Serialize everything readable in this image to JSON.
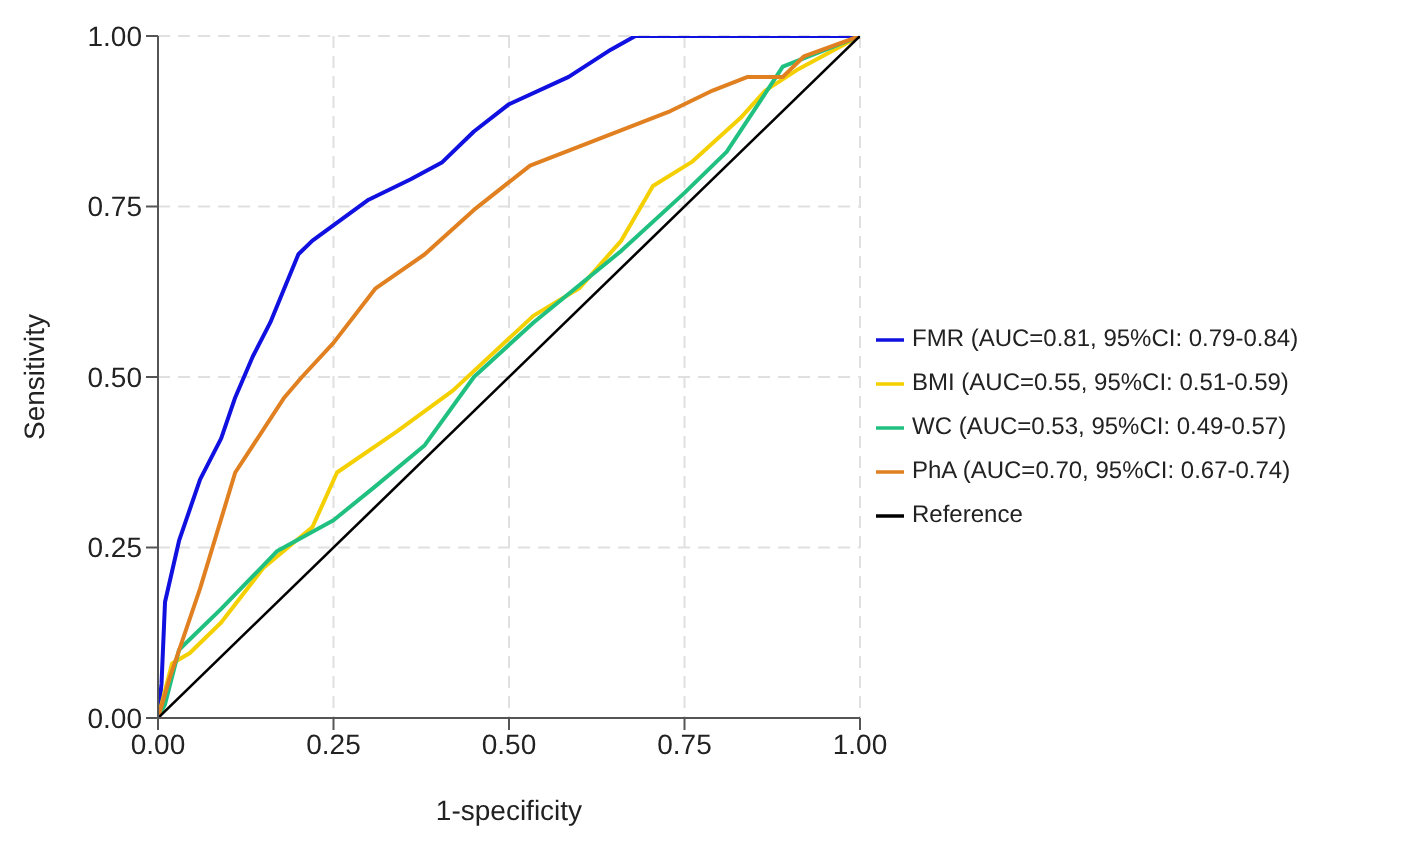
{
  "chart_data": {
    "type": "line",
    "xlabel": "1-specificity",
    "ylabel": "Sensitivity",
    "xlim": [
      0,
      1
    ],
    "ylim": [
      0,
      1
    ],
    "xticks": [
      {
        "value": 0,
        "label": "0.00"
      },
      {
        "value": 0.25,
        "label": "0.25"
      },
      {
        "value": 0.5,
        "label": "0.50"
      },
      {
        "value": 0.75,
        "label": "0.75"
      },
      {
        "value": 1,
        "label": "1.00"
      }
    ],
    "yticks": [
      {
        "value": 0,
        "label": "0.00"
      },
      {
        "value": 0.25,
        "label": "0.25"
      },
      {
        "value": 0.5,
        "label": "0.50"
      },
      {
        "value": 0.75,
        "label": "0.75"
      },
      {
        "value": 1,
        "label": "1.00"
      }
    ],
    "grid": true,
    "legend": "right",
    "marker": "none",
    "series": [
      {
        "name": "FMR (AUC=0.81, 95%CI: 0.79-0.84)",
        "color": "#1010e0",
        "x": [
          0,
          0.005,
          0.01,
          0.03,
          0.06,
          0.09,
          0.11,
          0.135,
          0.16,
          0.18,
          0.2,
          0.22,
          0.26,
          0.3,
          0.36,
          0.405,
          0.45,
          0.5,
          0.585,
          0.645,
          0.68,
          1
        ],
        "values": [
          0,
          0.05,
          0.17,
          0.26,
          0.35,
          0.41,
          0.47,
          0.53,
          0.58,
          0.63,
          0.68,
          0.7,
          0.73,
          0.76,
          0.79,
          0.815,
          0.86,
          0.9,
          0.94,
          0.98,
          1,
          1
        ]
      },
      {
        "name": "BMI (AUC=0.55, 95%CI: 0.51-0.59)",
        "color": "#f5d000",
        "x": [
          0,
          0.02,
          0.045,
          0.09,
          0.15,
          0.22,
          0.255,
          0.34,
          0.42,
          0.535,
          0.6,
          0.66,
          0.705,
          0.76,
          0.83,
          0.865,
          0.91,
          1
        ],
        "values": [
          0,
          0.08,
          0.095,
          0.14,
          0.22,
          0.28,
          0.36,
          0.42,
          0.48,
          0.59,
          0.63,
          0.7,
          0.78,
          0.815,
          0.88,
          0.92,
          0.95,
          1
        ]
      },
      {
        "name": "WC (AUC=0.53, 95%CI: 0.49-0.57)",
        "color": "#20c080",
        "x": [
          0,
          0.01,
          0.03,
          0.09,
          0.17,
          0.25,
          0.31,
          0.38,
          0.45,
          0.535,
          0.66,
          0.75,
          0.81,
          0.855,
          0.89,
          1
        ],
        "values": [
          0,
          0.02,
          0.1,
          0.16,
          0.245,
          0.29,
          0.34,
          0.4,
          0.5,
          0.58,
          0.685,
          0.77,
          0.83,
          0.9,
          0.955,
          1
        ]
      },
      {
        "name": "PhA (AUC=0.70, 95%CI: 0.67-0.74)",
        "color": "#e08020",
        "x": [
          0,
          0.017,
          0.06,
          0.11,
          0.18,
          0.205,
          0.25,
          0.31,
          0.38,
          0.45,
          0.53,
          0.73,
          0.79,
          0.84,
          0.89,
          0.92,
          1
        ],
        "values": [
          0,
          0.06,
          0.19,
          0.36,
          0.47,
          0.5,
          0.55,
          0.63,
          0.68,
          0.745,
          0.81,
          0.89,
          0.92,
          0.94,
          0.94,
          0.97,
          1
        ]
      },
      {
        "name": "Reference",
        "color": "#000000",
        "x": [
          0,
          1
        ],
        "values": [
          0,
          1
        ]
      }
    ]
  }
}
